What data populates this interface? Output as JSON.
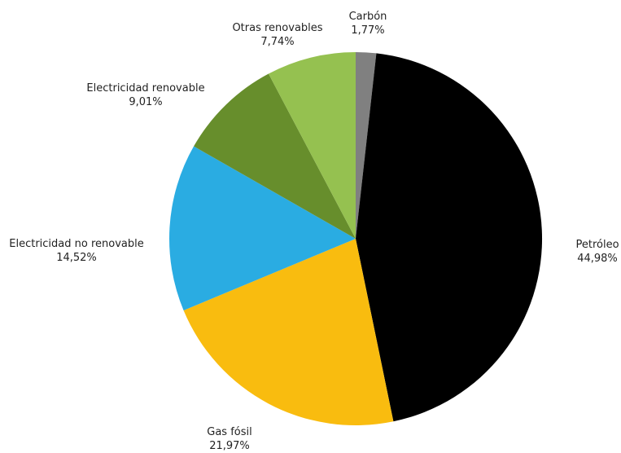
{
  "chart_data": {
    "type": "pie",
    "title": "",
    "slices": [
      {
        "label": "Carbón",
        "value": 1.77,
        "value_label": "1,77%",
        "color": "#808080"
      },
      {
        "label": "Petróleo",
        "value": 44.98,
        "value_label": "44,98%",
        "color": "#000000"
      },
      {
        "label": "Gas fósil",
        "value": 21.97,
        "value_label": "21,97%",
        "color": "#F9BC0F"
      },
      {
        "label": "Electricidad no renovable",
        "value": 14.52,
        "value_label": "14,52%",
        "color": "#2AACE2"
      },
      {
        "label": "Electricidad renovable",
        "value": 9.01,
        "value_label": "9,01%",
        "color": "#678E2C"
      },
      {
        "label": "Otras renovables",
        "value": 7.74,
        "value_label": "7,74%",
        "color": "#95C150"
      }
    ],
    "start_angle": "12 o'clock",
    "direction": "clockwise",
    "labels": "outside"
  }
}
